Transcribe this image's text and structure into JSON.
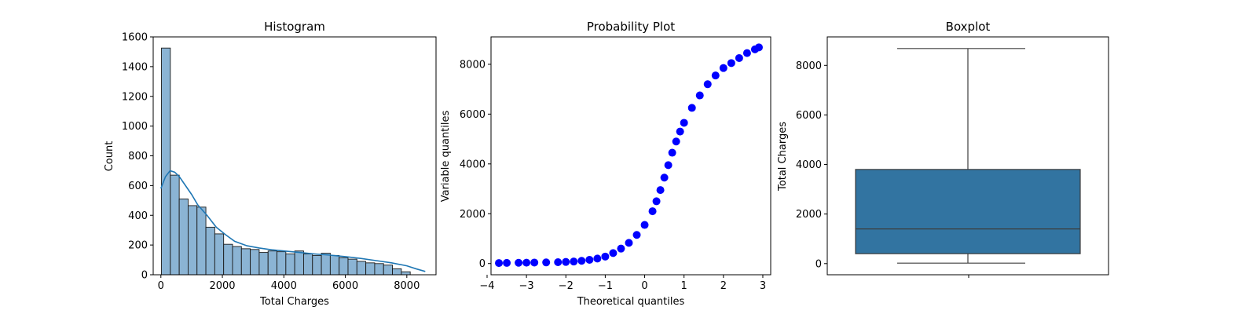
{
  "chart_data": [
    {
      "type": "bar",
      "title": "Histogram",
      "xlabel": "Total Charges",
      "ylabel": "Count",
      "xlim": [
        -250,
        8950
      ],
      "ylim": [
        0,
        1600
      ],
      "xticks": [
        0,
        2000,
        4000,
        6000,
        8000
      ],
      "yticks": [
        0,
        200,
        400,
        600,
        800,
        1000,
        1200,
        1400,
        1600
      ],
      "bins": {
        "start": 18.8,
        "width": 289.0,
        "values": [
          1525,
          670,
          510,
          465,
          455,
          320,
          275,
          205,
          190,
          175,
          170,
          150,
          160,
          155,
          140,
          160,
          140,
          130,
          145,
          130,
          115,
          105,
          90,
          80,
          75,
          65,
          40,
          20
        ]
      },
      "kde": {
        "x": [
          0,
          150,
          300,
          450,
          600,
          800,
          1000,
          1200,
          1500,
          1800,
          2100,
          2400,
          2800,
          3200,
          3600,
          4000,
          4500,
          5000,
          5500,
          6000,
          6500,
          7000,
          7500,
          8000,
          8300,
          8600
        ],
        "y": [
          580,
          660,
          700,
          690,
          660,
          600,
          540,
          470,
          400,
          320,
          270,
          225,
          195,
          180,
          168,
          160,
          150,
          140,
          132,
          122,
          110,
          95,
          80,
          60,
          40,
          22
        ]
      }
    },
    {
      "type": "scatter",
      "title": "Probability Plot",
      "xlabel": "Theoretical quantiles",
      "ylabel": "Variable quantiles",
      "xlim": [
        -3.9,
        3.2
      ],
      "ylim": [
        -450,
        9100
      ],
      "xticks": [
        -4,
        -3,
        -2,
        -1,
        0,
        1,
        2,
        3
      ],
      "yticks": [
        0,
        2000,
        4000,
        6000,
        8000
      ],
      "points": {
        "x": [
          -3.7,
          -3.5,
          -3.2,
          -3.0,
          -2.8,
          -2.5,
          -2.2,
          -2.0,
          -1.8,
          -1.6,
          -1.4,
          -1.2,
          -1.0,
          -0.8,
          -0.6,
          -0.4,
          -0.2,
          0.0,
          0.2,
          0.3,
          0.4,
          0.5,
          0.6,
          0.7,
          0.8,
          0.9,
          1.0,
          1.2,
          1.4,
          1.6,
          1.8,
          2.0,
          2.2,
          2.4,
          2.6,
          2.8,
          2.9
        ],
        "y": [
          20,
          25,
          30,
          35,
          40,
          45,
          55,
          65,
          80,
          110,
          150,
          200,
          280,
          420,
          600,
          830,
          1150,
          1550,
          2100,
          2500,
          2950,
          3450,
          3950,
          4450,
          4900,
          5300,
          5650,
          6250,
          6750,
          7200,
          7550,
          7850,
          8050,
          8250,
          8450,
          8600,
          8680
        ]
      }
    },
    {
      "type": "box",
      "title": "Boxplot",
      "xlabel": "",
      "ylabel": "Total Charges",
      "ylim": [
        -450,
        9150
      ],
      "yticks": [
        0,
        2000,
        4000,
        6000,
        8000
      ],
      "box": {
        "min": 19,
        "q1": 400,
        "median": 1400,
        "q3": 3800,
        "max": 8680
      }
    }
  ],
  "colors": {
    "bar_fill": "#8bb4d4",
    "kde_line": "#1f77b4",
    "points": "#0000ff",
    "box_fill": "#3274a1",
    "lines": "#3d3d3d"
  }
}
